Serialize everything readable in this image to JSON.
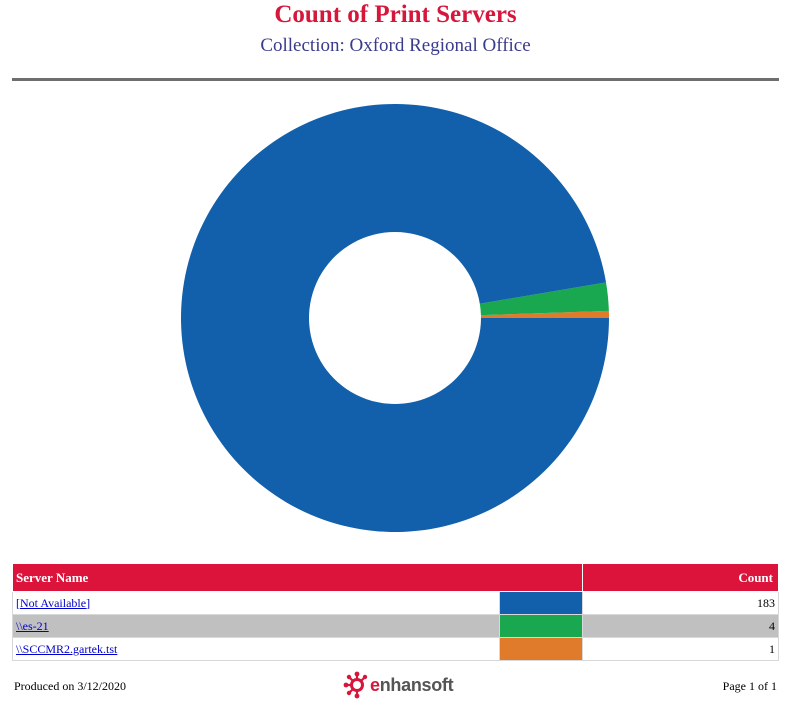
{
  "report": {
    "title": "Count of Print Servers",
    "subtitle": "Collection: Oxford Regional Office"
  },
  "chart_data": {
    "type": "pie",
    "subtype": "donut",
    "categories": [
      "[Not Available]",
      "\\\\es-21",
      "\\\\SCCMR2.gartek.tst"
    ],
    "values": [
      183,
      4,
      1
    ],
    "colors": [
      "#1260ab",
      "#19a750",
      "#e07b2b"
    ]
  },
  "table": {
    "headers": {
      "name": "Server Name",
      "count": "Count"
    },
    "rows": [
      {
        "name": "[Not Available]",
        "count": "183",
        "color": "#1260ab"
      },
      {
        "name": "\\\\es-21",
        "count": "4",
        "color": "#19a750"
      },
      {
        "name": "\\\\SCCMR2.gartek.tst",
        "count": "1",
        "color": "#e07b2b"
      }
    ]
  },
  "footer": {
    "produced": "Produced on 3/12/2020",
    "page": "Page 1 of 1",
    "logo_text": "enhansoft",
    "logo_icon": "molecule-icon"
  }
}
